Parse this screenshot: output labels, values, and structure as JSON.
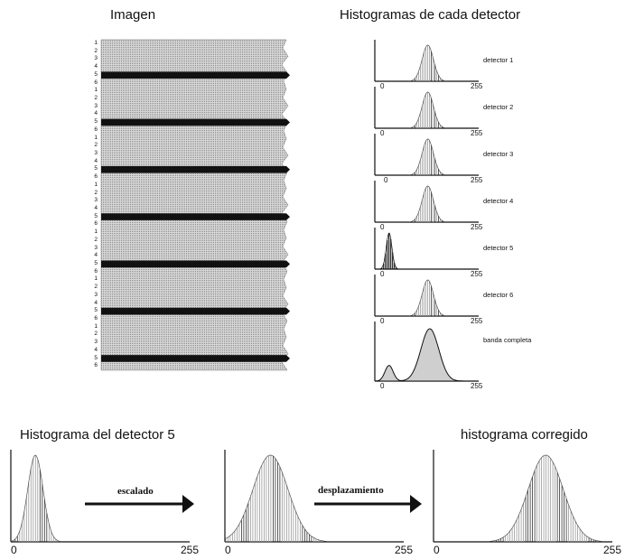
{
  "titles": {
    "image": "Imagen",
    "histograms": "Histogramas de cada detector",
    "bottom_left": "Histograma del detector 5",
    "bottom_right": "histograma corregido"
  },
  "image_panel": {
    "groups": 7,
    "row_numbers": [
      "1",
      "2",
      "3",
      "4",
      "5",
      "6"
    ],
    "dark_row": "5"
  },
  "detector_histograms": [
    {
      "label": "detector 1",
      "axis_min": "0",
      "axis_max": "255",
      "shape": "normal",
      "mean": 130,
      "sd": 14
    },
    {
      "label": "detector 2",
      "axis_min": "0",
      "axis_max": "255",
      "shape": "normal",
      "mean": 130,
      "sd": 14
    },
    {
      "label": "detector 3",
      "axis_min": "0",
      "axis_max": "255",
      "shape": "normal",
      "mean": 130,
      "sd": 14
    },
    {
      "label": "detector 4",
      "axis_min": "0",
      "axis_max": "255",
      "shape": "normal",
      "mean": 130,
      "sd": 14
    },
    {
      "label": "detector 5",
      "axis_min": "0",
      "axis_max": "255",
      "shape": "normal",
      "mean": 35,
      "sd": 7
    },
    {
      "label": "detector 6",
      "axis_min": "0",
      "axis_max": "255",
      "shape": "normal",
      "mean": 130,
      "sd": 14
    },
    {
      "label": "banda completa",
      "axis_min": "0",
      "axis_max": "255",
      "shape": "bimodal"
    }
  ],
  "bottom_histograms": [
    {
      "axis_min": "0",
      "axis_max": "255",
      "mean": 35,
      "sd": 11
    },
    {
      "axis_min": "0",
      "axis_max": "255",
      "mean": 65,
      "sd": 25
    },
    {
      "axis_min": "0",
      "axis_max": "255",
      "mean": 160,
      "sd": 25
    }
  ],
  "arrows": {
    "first": "escalado",
    "second": "desplazamiento"
  }
}
